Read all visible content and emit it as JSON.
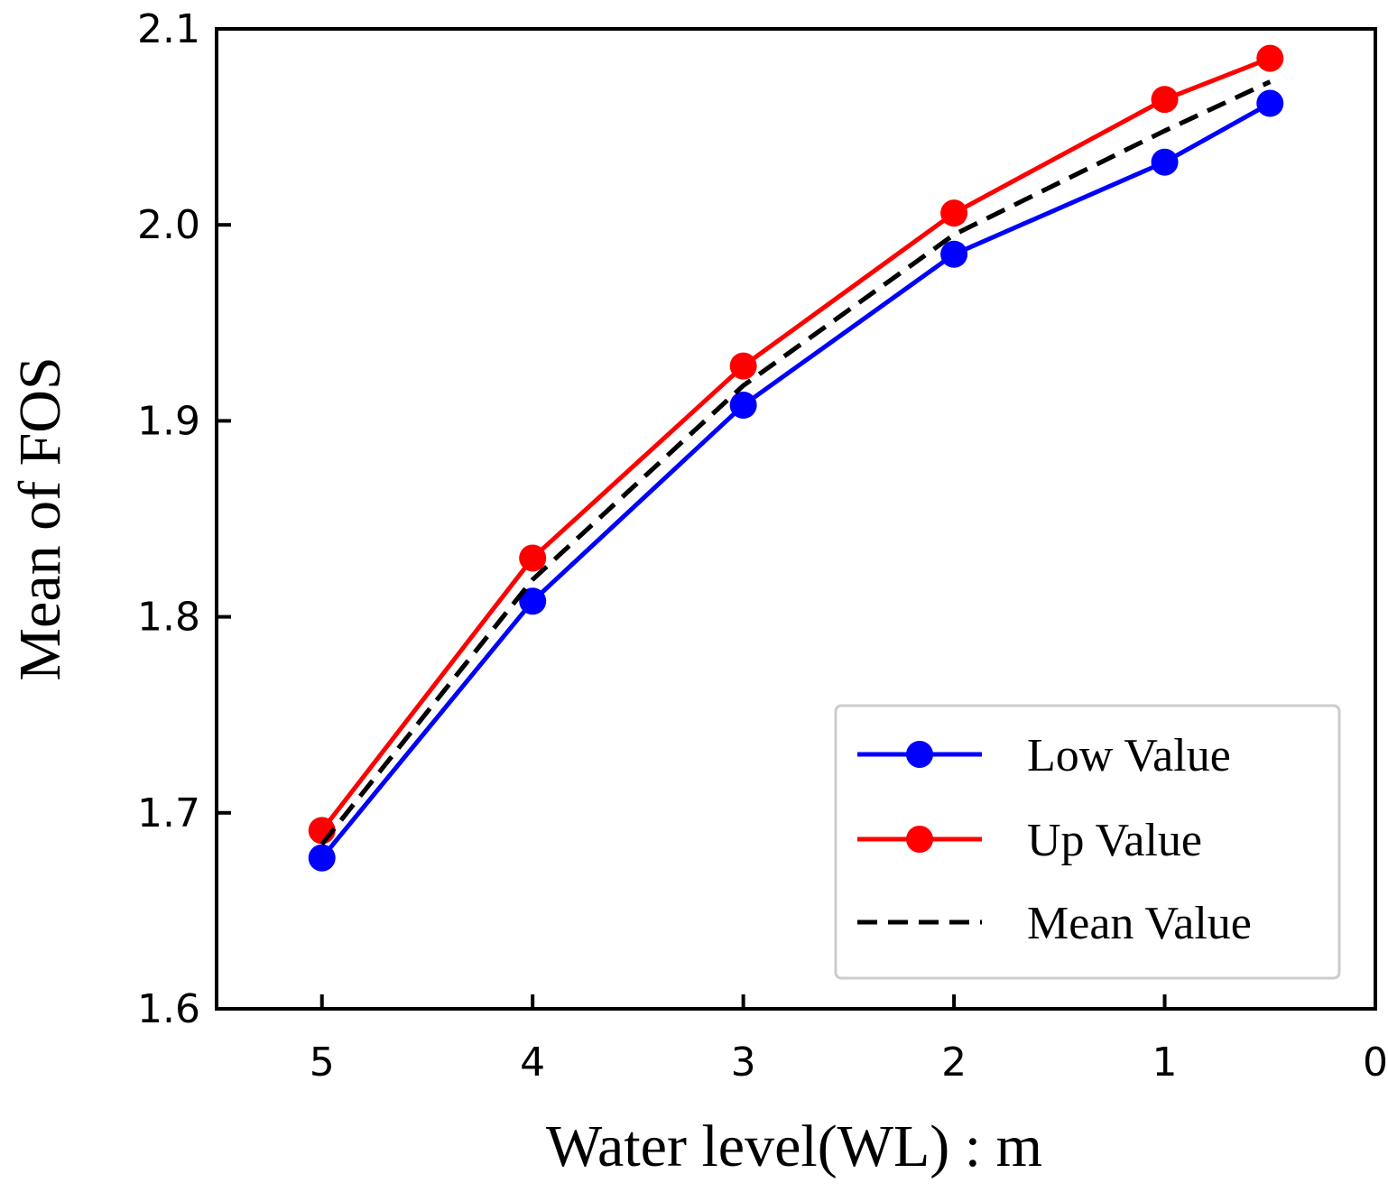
{
  "chart_data": {
    "type": "line",
    "title": "",
    "xlabel": "Water level(WL) : m",
    "ylabel": "Mean of FOS",
    "xlim": [
      5.5,
      0
    ],
    "ylim": [
      1.6,
      2.1
    ],
    "x_ticks": [
      "5",
      "4",
      "3",
      "2",
      "1",
      "0"
    ],
    "y_ticks": [
      "1.6",
      "1.7",
      "1.8",
      "1.9",
      "2.0",
      "2.1"
    ],
    "x": [
      5,
      4,
      3,
      2,
      1,
      0.5
    ],
    "series": [
      {
        "name": "Low Value",
        "values": [
          1.677,
          1.808,
          1.908,
          1.985,
          2.032,
          2.062
        ],
        "color": "#0000ff",
        "style": "solid",
        "marker": "circle"
      },
      {
        "name": "Up Value",
        "values": [
          1.691,
          1.83,
          1.928,
          2.006,
          2.064,
          2.085
        ],
        "color": "#ff0000",
        "style": "solid",
        "marker": "circle"
      },
      {
        "name": "Mean Value",
        "values": [
          1.684,
          1.819,
          1.918,
          1.995,
          2.048,
          2.073
        ],
        "color": "#000000",
        "style": "dashed",
        "marker": "none"
      }
    ],
    "legend_position": "bottom-right",
    "grid": false
  }
}
